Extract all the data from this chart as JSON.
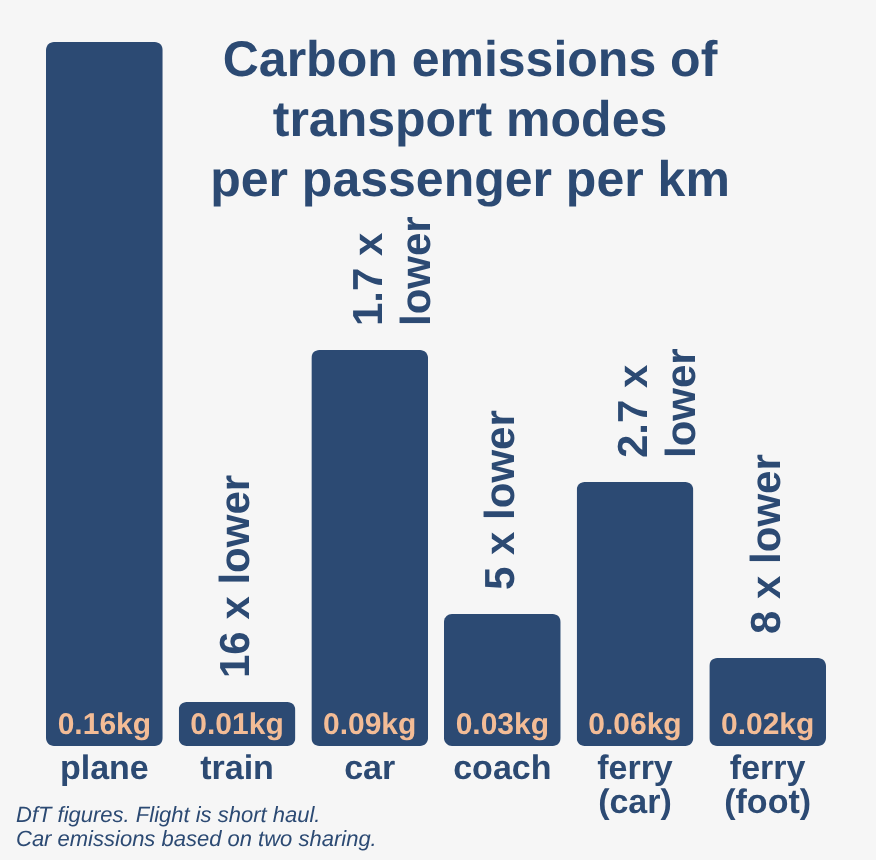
{
  "chart_data": {
    "type": "bar",
    "title": "Carbon emissions of\ntransport modes\nper passenger per km",
    "categories": [
      "plane",
      "train",
      "car",
      "coach",
      "ferry (car)",
      "ferry (foot)"
    ],
    "values": [
      0.16,
      0.01,
      0.09,
      0.03,
      0.06,
      0.02
    ],
    "value_labels": [
      "0.16kg",
      "0.01kg",
      "0.09kg",
      "0.03kg",
      "0.06kg",
      "0.02kg"
    ],
    "color": "#2c4a73",
    "tick_labels": "x",
    "annotations": [
      {
        "text": "16 x lower",
        "x": "train",
        "y": 0.01
      },
      {
        "text": "1.7 x lower",
        "x": "car",
        "y": 0.09
      },
      {
        "text": "5 x lower",
        "x": "coach",
        "y": 0.03
      },
      {
        "text": "2.7 x lower",
        "x": "ferry (car)",
        "y": 0.06
      },
      {
        "text": "8 x lower",
        "x": "ferry (foot)",
        "y": 0.02
      },
      "DfT figures. Flight is short haul.",
      "Car emissions based on two sharing."
    ]
  }
}
